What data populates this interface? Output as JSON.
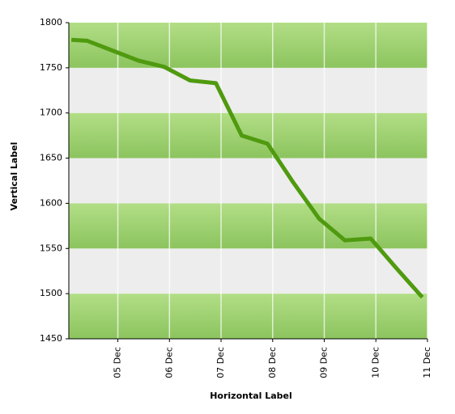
{
  "chart_data": {
    "type": "line",
    "xlabel": "Horizontal Label",
    "ylabel": "Vertical Label",
    "x": [
      4.1,
      4.4,
      4.9,
      5.4,
      5.9,
      6.4,
      6.9,
      7.4,
      7.9,
      8.4,
      8.9,
      9.4,
      9.9,
      10.4,
      10.9
    ],
    "series": [
      {
        "color": "#4f9a0f",
        "values": [
          1781,
          1780,
          1769,
          1758,
          1751,
          1736,
          1733,
          1675,
          1666,
          1623,
          1583,
          1559,
          1561,
          1528,
          1496
        ]
      }
    ],
    "xlim": [
      4.05,
      11
    ],
    "xticks": [
      {
        "value": 5,
        "label": "05 Dec"
      },
      {
        "value": 6,
        "label": "06 Dec"
      },
      {
        "value": 7,
        "label": "07 Dec"
      },
      {
        "value": 8,
        "label": "08 Dec"
      },
      {
        "value": 9,
        "label": "09 Dec"
      },
      {
        "value": 10,
        "label": "10 Dec"
      },
      {
        "value": 11,
        "label": "11 Dec"
      }
    ],
    "ylim": [
      1450,
      1800
    ],
    "yticks": [
      1450,
      1500,
      1550,
      1600,
      1650,
      1700,
      1750,
      1800
    ],
    "grid": true
  }
}
